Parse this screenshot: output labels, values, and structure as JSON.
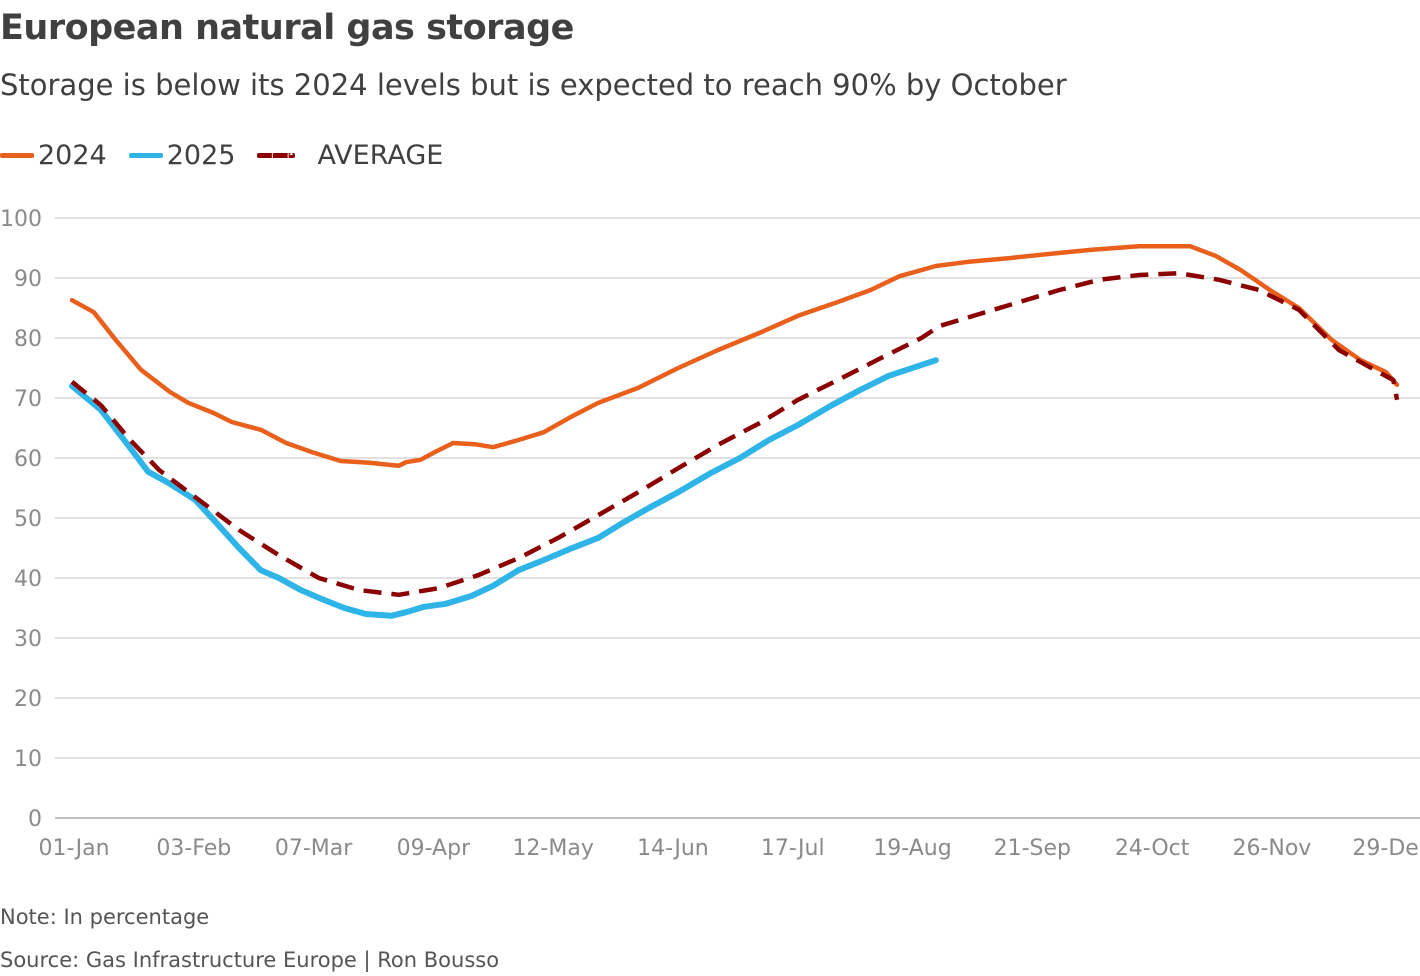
{
  "colors": {
    "s2024": "#e8601c",
    "s2025": "#2eb4e6",
    "average": "#8b0000",
    "grid": "#cfcfcf",
    "axis_text": "#8a8a8a"
  },
  "chart_data": {
    "type": "line",
    "title": "European natural gas storage",
    "subtitle": "Storage is below its 2024 levels but is expected to reach 90% by October",
    "legend_position": "top-left",
    "grid": true,
    "ylim": [
      0,
      100
    ],
    "yticks": [
      0,
      10,
      20,
      30,
      40,
      50,
      60,
      70,
      80,
      90,
      100
    ],
    "xlim": [
      "01-Jan",
      "31-Dec"
    ],
    "xticks": [
      "01-Jan",
      "03-Feb",
      "07-Mar",
      "09-Apr",
      "12-May",
      "14-Jun",
      "17-Jul",
      "19-Aug",
      "21-Sep",
      "24-Oct",
      "26-Nov",
      "29-Dec"
    ],
    "series": [
      {
        "name": "2024",
        "key": "s2024",
        "style": "solid",
        "x": [
          "01-Jan",
          "07-Jan",
          "13-Jan",
          "20-Jan",
          "28-Jan",
          "02-Feb",
          "09-Feb",
          "14-Feb",
          "22-Feb",
          "29-Feb",
          "07-Mar",
          "15-Mar",
          "23-Mar",
          "31-Mar",
          "02-Apr",
          "06-Apr",
          "10-Apr",
          "15-Apr",
          "21-Apr",
          "26-Apr",
          "03-May",
          "10-May",
          "17-May",
          "25-May",
          "05-Jun",
          "16-Jun",
          "27-Jun",
          "09-Jul",
          "19-Jul",
          "30-Jul",
          "08-Aug",
          "16-Aug",
          "26-Aug",
          "04-Sep",
          "15-Sep",
          "26-Sep",
          "08-Oct",
          "21-Oct",
          "04-Nov",
          "11-Nov",
          "18-Nov",
          "26-Nov",
          "04-Dec",
          "13-Dec",
          "21-Dec",
          "28-Dec",
          "31-Dec"
        ],
        "y": [
          86.3,
          84.3,
          79.7,
          74.7,
          71,
          69.2,
          67.5,
          66,
          64.7,
          62.5,
          61,
          59.5,
          59.2,
          58.7,
          59.3,
          59.7,
          61,
          62.5,
          62.3,
          61.8,
          63,
          64.3,
          66.7,
          69.2,
          71.7,
          75,
          78,
          81,
          83.7,
          86,
          88,
          90.3,
          92,
          92.7,
          93.3,
          94,
          94.7,
          95.3,
          95.3,
          93.7,
          91.3,
          88,
          85,
          79.7,
          76.3,
          74.3,
          72.2
        ]
      },
      {
        "name": "2025",
        "key": "s2025",
        "style": "solid",
        "x": [
          "01-Jan",
          "09-Jan",
          "17-Jan",
          "22-Jan",
          "28-Jan",
          "04-Feb",
          "09-Feb",
          "16-Feb",
          "22-Feb",
          "27-Feb",
          "04-Mar",
          "09-Mar",
          "16-Mar",
          "22-Mar",
          "29-Mar",
          "02-Apr",
          "07-Apr",
          "13-Apr",
          "20-Apr",
          "26-Apr",
          "03-May",
          "10-May",
          "17-May",
          "25-May",
          "01-Jun",
          "08-Jun",
          "16-Jun",
          "25-Jun",
          "03-Jul",
          "11-Jul",
          "19-Jul",
          "28-Jul",
          "05-Aug",
          "13-Aug",
          "26-Aug"
        ],
        "y": [
          72,
          68,
          61.7,
          57.7,
          55.7,
          53,
          49.7,
          45,
          41.3,
          40,
          38,
          36.7,
          35,
          34,
          33.7,
          34.3,
          35.2,
          35.7,
          37,
          38.7,
          41.3,
          43,
          44.8,
          46.7,
          49.3,
          51.7,
          54.3,
          57.5,
          60,
          63,
          65.5,
          68.7,
          71.3,
          73.7,
          76.3
        ]
      },
      {
        "name": "AVERAGE",
        "key": "average",
        "style": "dashed",
        "x": [
          "01-Jan",
          "09-Jan",
          "17-Jan",
          "25-Jan",
          "05-Feb",
          "16-Feb",
          "27-Feb",
          "09-Mar",
          "20-Mar",
          "31-Mar",
          "11-Apr",
          "22-Apr",
          "03-May",
          "14-May",
          "25-May",
          "05-Jun",
          "16-Jun",
          "27-Jun",
          "09-Jul",
          "19-Jul",
          "30-Jul",
          "11-Aug",
          "22-Aug",
          "27-Aug",
          "07-Sep",
          "18-Sep",
          "29-Sep",
          "10-Oct",
          "21-Oct",
          "01-Nov",
          "12-Nov",
          "23-Nov",
          "04-Dec",
          "15-Dec",
          "26-Dec",
          "30-Dec",
          "31-Dec"
        ],
        "y": [
          72.7,
          68.8,
          63,
          58,
          53,
          48,
          43.8,
          40,
          38,
          37.2,
          38.3,
          40.5,
          43.3,
          46.7,
          50.5,
          54.3,
          58.3,
          62.2,
          66,
          69.7,
          73,
          76.7,
          80,
          82,
          84,
          86,
          88,
          89.7,
          90.5,
          90.8,
          89.7,
          88,
          84.7,
          78,
          74.3,
          73,
          69.7
        ]
      }
    ]
  },
  "footer": {
    "note": "Note: In percentage",
    "source": "Source: Gas Infrastructure Europe  | Ron Bousso"
  }
}
